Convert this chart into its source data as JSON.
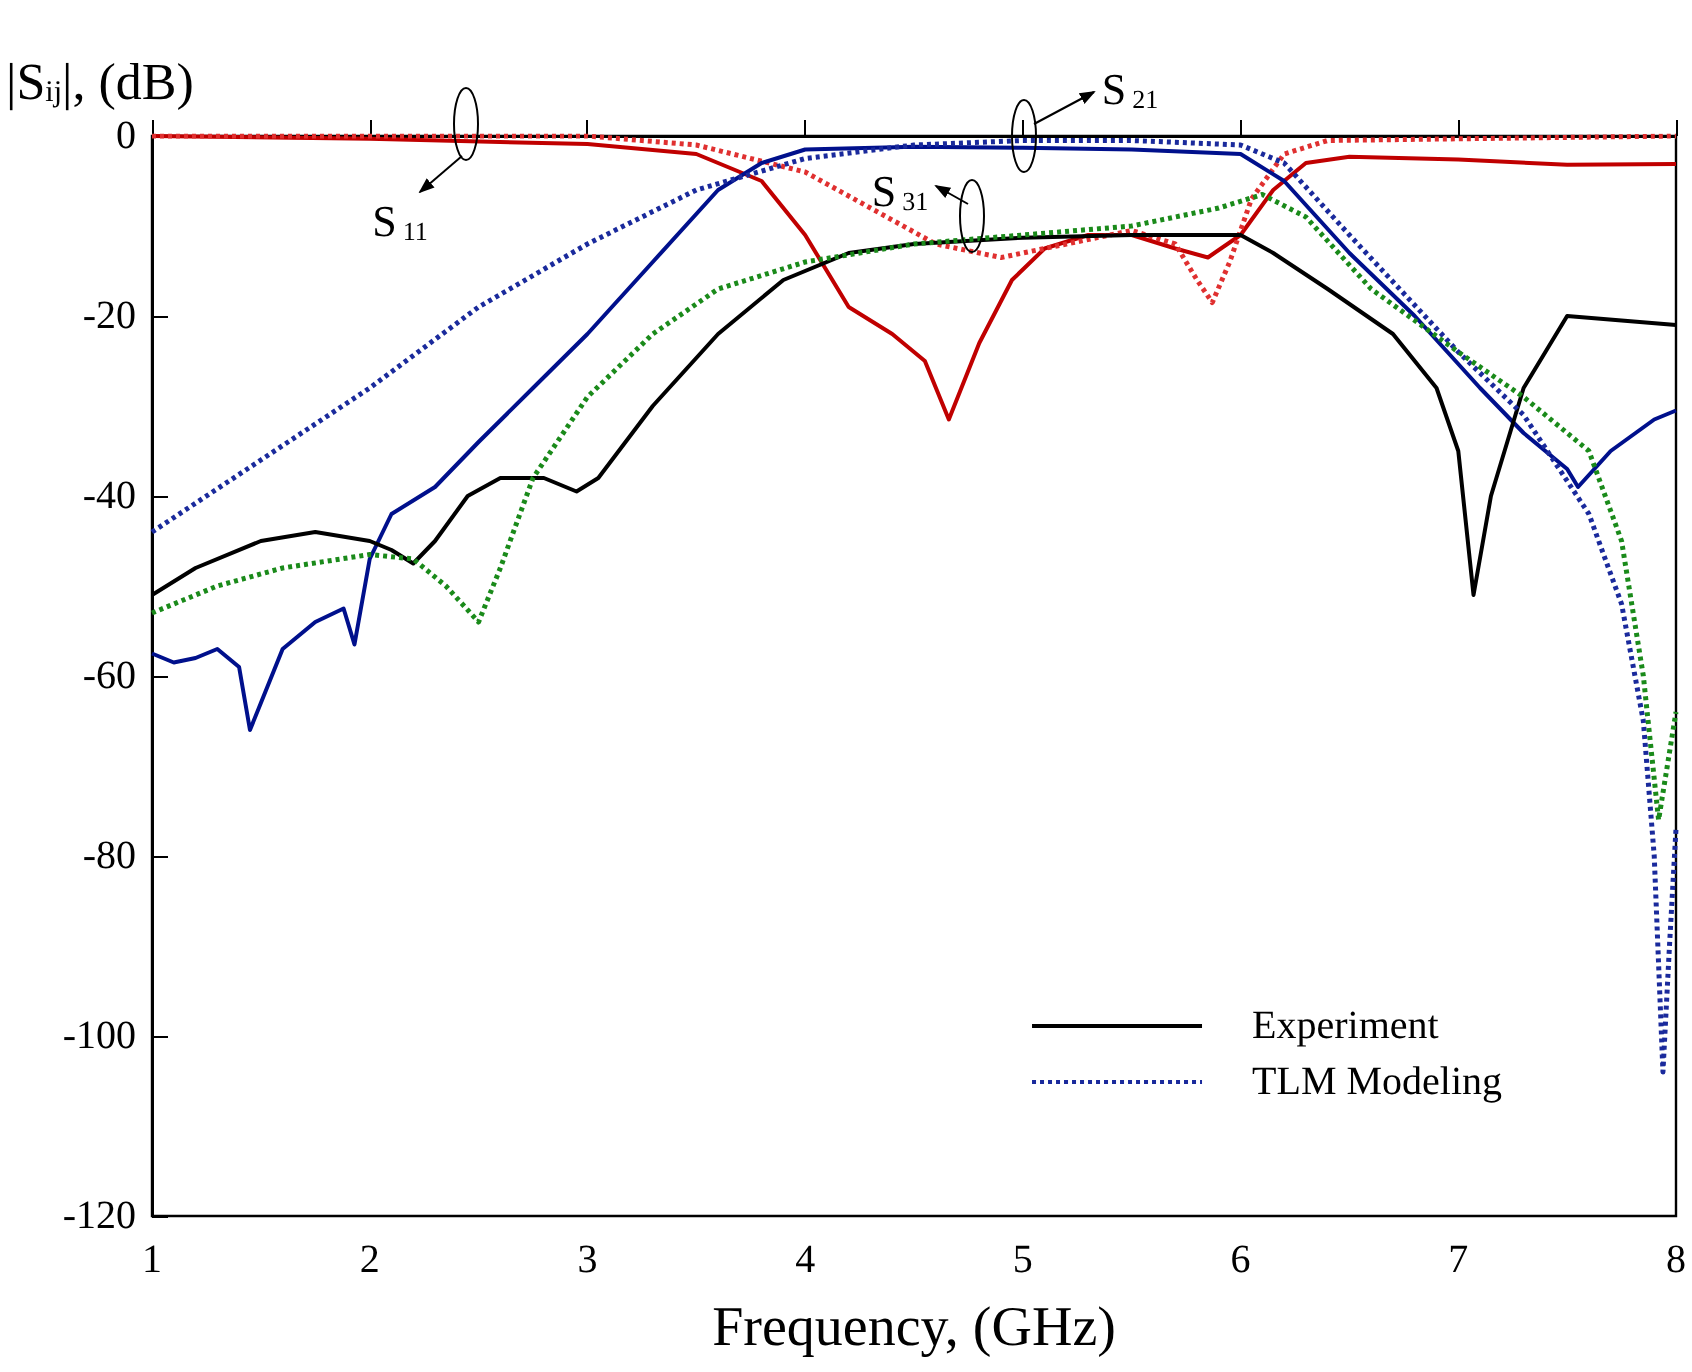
{
  "chart_data": {
    "type": "line",
    "xlabel": "Frequency, (GHz)",
    "ylabel": "|S$_{ij}$|, (dB)",
    "xlim": [
      1,
      8
    ],
    "xticks": [
      1,
      2,
      3,
      4,
      5,
      6,
      7,
      8
    ],
    "ylim": [
      -120,
      0
    ],
    "yticks": [
      -120,
      -100,
      -80,
      -60,
      -40,
      -20,
      0
    ],
    "grid": false,
    "legend": "bottom right",
    "marker": "none",
    "annotations": [
      "S$_{11}$",
      "S$_{21}$",
      "S$_{31}$"
    ],
    "series": [
      {
        "color": "#c00000",
        "line_style": "solid",
        "x": [
          1,
          2,
          3,
          3.5,
          3.8,
          4,
          4.2,
          4.4,
          4.55,
          4.66,
          4.8,
          4.95,
          5.1,
          5.3,
          5.5,
          5.7,
          5.85,
          6,
          6.15,
          6.3,
          6.5,
          7,
          7.5,
          8
        ],
        "values": [
          0,
          -0.3,
          -0.9,
          -2,
          -5,
          -11,
          -19,
          -22,
          -25,
          -31.5,
          -23,
          -16,
          -12.5,
          -11,
          -11,
          -12.5,
          -13.5,
          -11,
          -6,
          -3,
          -2.3,
          -2.6,
          -3.2,
          -3.1
        ]
      },
      {
        "color": "#e03030",
        "line_style": "dotted",
        "x": [
          1,
          3,
          3.5,
          4,
          4.3,
          4.6,
          4.9,
          5.2,
          5.5,
          5.7,
          5.8,
          5.87,
          5.95,
          6.05,
          6.2,
          6.4,
          8
        ],
        "values": [
          0,
          0,
          -1,
          -4,
          -8,
          -12,
          -13.5,
          -12,
          -10.5,
          -12,
          -16,
          -18.5,
          -14,
          -7,
          -2,
          -0.5,
          0
        ]
      },
      {
        "color": "#00108c",
        "line_style": "solid",
        "x": [
          1,
          1.1,
          1.2,
          1.3,
          1.4,
          1.45,
          1.5,
          1.6,
          1.75,
          1.88,
          1.93,
          2,
          2.1,
          2.3,
          2.5,
          2.75,
          3,
          3.3,
          3.6,
          3.8,
          4,
          4.5,
          5,
          5.5,
          6,
          6.2,
          6.5,
          6.8,
          7.1,
          7.3,
          7.5,
          7.55,
          7.7,
          7.9,
          8
        ],
        "values": [
          -57.5,
          -58.5,
          -58,
          -57,
          -59,
          -66,
          -63,
          -57,
          -54,
          -52.5,
          -56.5,
          -47,
          -42,
          -39,
          -34,
          -28,
          -22,
          -14,
          -6,
          -3,
          -1.5,
          -1.2,
          -1.3,
          -1.5,
          -2,
          -5,
          -13,
          -20,
          -28,
          -33,
          -37,
          -39,
          -35,
          -31.5,
          -30.5
        ]
      },
      {
        "name": "Experiment",
        "color": "#000000",
        "line_style": "solid",
        "x": [
          1,
          1.2,
          1.5,
          1.75,
          2,
          2.1,
          2.2,
          2.3,
          2.45,
          2.6,
          2.8,
          2.95,
          3.05,
          3.3,
          3.6,
          3.9,
          4.2,
          4.5,
          5,
          5.5,
          6,
          6.15,
          6.4,
          6.7,
          6.9,
          7,
          7.07,
          7.15,
          7.3,
          7.5,
          7.75,
          8
        ],
        "values": [
          -51,
          -48,
          -45,
          -44,
          -45,
          -46,
          -47.5,
          -45,
          -40,
          -38,
          -38,
          -39.5,
          -38,
          -30,
          -22,
          -16,
          -13,
          -12,
          -11.3,
          -11,
          -11,
          -13,
          -17,
          -22,
          -28,
          -35,
          -51,
          -40,
          -28,
          -20,
          -20.5,
          -21
        ]
      },
      {
        "name": "TLM Modeling",
        "color": "#1a2a9c",
        "line_style": "dotted",
        "x": [
          1,
          1.5,
          2,
          2.5,
          3,
          3.5,
          4,
          4.5,
          5,
          5.5,
          6,
          6.2,
          6.5,
          7,
          7.3,
          7.6,
          7.75,
          7.85,
          7.9,
          7.94,
          7.97,
          8
        ],
        "values": [
          -44,
          -36,
          -28,
          -19,
          -12,
          -6,
          -2.5,
          -1,
          -0.5,
          -0.5,
          -1,
          -3,
          -11,
          -24,
          -31,
          -42,
          -52,
          -65,
          -80,
          -104,
          -90,
          -77
        ]
      },
      {
        "color": "#1a8a1a",
        "line_style": "dotted",
        "x": [
          1,
          1.3,
          1.6,
          2,
          2.2,
          2.35,
          2.5,
          2.6,
          2.75,
          3,
          3.3,
          3.6,
          4,
          4.5,
          5,
          5.5,
          5.9,
          6.1,
          6.3,
          6.6,
          7,
          7.3,
          7.6,
          7.75,
          7.85,
          7.92,
          7.96,
          8
        ],
        "values": [
          -53,
          -50,
          -48,
          -46.5,
          -47,
          -50,
          -54,
          -48,
          -38,
          -29,
          -22,
          -17,
          -14,
          -12,
          -11,
          -10,
          -8,
          -6.5,
          -9,
          -17,
          -24,
          -29,
          -35,
          -45,
          -60,
          -76,
          -70,
          -64
        ]
      }
    ]
  }
}
